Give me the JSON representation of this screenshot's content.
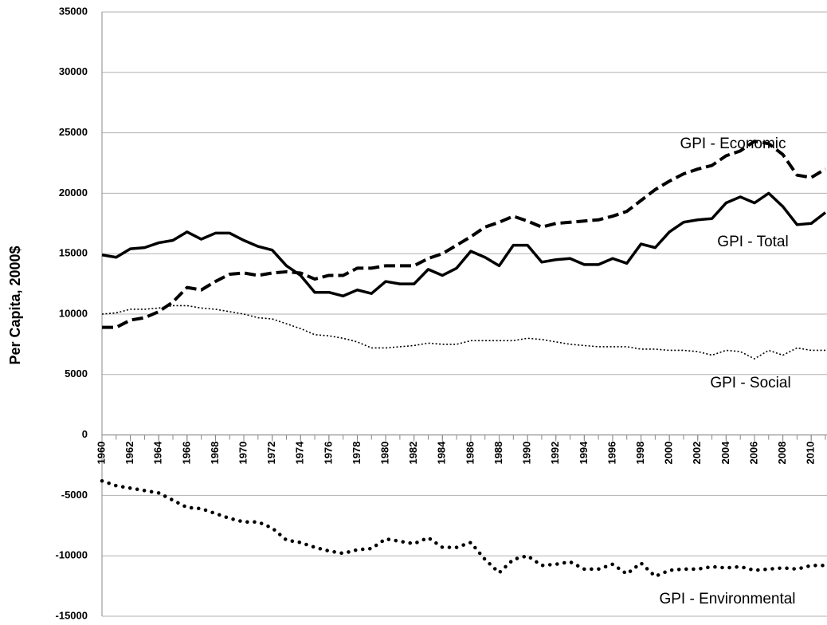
{
  "chart_data": {
    "type": "line",
    "y_label": "Per Capita, 2000$",
    "x": [
      1960,
      1961,
      1962,
      1963,
      1964,
      1965,
      1966,
      1967,
      1968,
      1969,
      1970,
      1971,
      1972,
      1973,
      1974,
      1975,
      1976,
      1977,
      1978,
      1979,
      1980,
      1981,
      1982,
      1983,
      1984,
      1985,
      1986,
      1987,
      1988,
      1989,
      1990,
      1991,
      1992,
      1993,
      1994,
      1995,
      1996,
      1997,
      1998,
      1999,
      2000,
      2001,
      2002,
      2003,
      2004,
      2005,
      2006,
      2007,
      2008,
      2009,
      2010,
      2011
    ],
    "xlim": [
      1960,
      2011
    ],
    "xticks": [
      1960,
      1962,
      1964,
      1966,
      1968,
      1970,
      1972,
      1974,
      1976,
      1978,
      1980,
      1982,
      1984,
      1986,
      1988,
      1990,
      1992,
      1994,
      1996,
      1998,
      2000,
      2002,
      2004,
      2006,
      2008,
      2010
    ],
    "ylim": [
      -15000,
      35000
    ],
    "yticks": [
      -15000,
      -10000,
      -5000,
      0,
      5000,
      10000,
      15000,
      20000,
      25000,
      30000,
      35000
    ],
    "grid": true,
    "series": [
      {
        "name": "GPI - Economic",
        "color": "#000000",
        "dash": "dashed",
        "values": [
          8900,
          8900,
          9500,
          9700,
          10200,
          11000,
          12200,
          12000,
          12700,
          13300,
          13400,
          13200,
          13400,
          13500,
          13400,
          12900,
          13200,
          13200,
          13800,
          13800,
          14000,
          14000,
          14000,
          14600,
          15000,
          15700,
          16400,
          17200,
          17600,
          18100,
          17700,
          17200,
          17500,
          17600,
          17700,
          17800,
          18100,
          18500,
          19400,
          20300,
          21000,
          21600,
          22000,
          22300,
          23100,
          23500,
          24300,
          24100,
          23200,
          21500,
          21300,
          22000
        ]
      },
      {
        "name": "GPI - Total",
        "color": "#000000",
        "dash": "solid",
        "values": [
          14900,
          14700,
          15400,
          15500,
          15900,
          16100,
          16800,
          16200,
          16700,
          16700,
          16100,
          15600,
          15300,
          14000,
          13200,
          11800,
          11800,
          11500,
          12000,
          11700,
          12700,
          12500,
          12500,
          13700,
          13200,
          13800,
          15200,
          14700,
          14000,
          15700,
          15700,
          14300,
          14500,
          14600,
          14100,
          14100,
          14600,
          14200,
          15800,
          15500,
          16800,
          17600,
          17800,
          17900,
          19200,
          19700,
          19200,
          20000,
          18900,
          17400,
          17500,
          18400
        ]
      },
      {
        "name": "GPI - Social",
        "color": "#000000",
        "dash": "dotted",
        "values": [
          10000,
          10100,
          10400,
          10400,
          10500,
          10700,
          10700,
          10500,
          10400,
          10200,
          10000,
          9700,
          9600,
          9200,
          8800,
          8300,
          8200,
          8000,
          7700,
          7200,
          7200,
          7300,
          7400,
          7600,
          7500,
          7500,
          7800,
          7800,
          7800,
          7800,
          8000,
          7900,
          7700,
          7500,
          7400,
          7300,
          7300,
          7300,
          7100,
          7100,
          7000,
          7000,
          6900,
          6600,
          7000,
          6900,
          6300,
          7000,
          6600,
          7200,
          7000,
          7000
        ]
      },
      {
        "name": "GPI - Environmental",
        "color": "#000000",
        "dash": "heavy-dotted",
        "values": [
          -3800,
          -4200,
          -4400,
          -4600,
          -4800,
          -5400,
          -6000,
          -6100,
          -6500,
          -6900,
          -7200,
          -7200,
          -7700,
          -8700,
          -8900,
          -9300,
          -9600,
          -9800,
          -9500,
          -9400,
          -8600,
          -8800,
          -9000,
          -8500,
          -9300,
          -9300,
          -8900,
          -10300,
          -11400,
          -10300,
          -10000,
          -10800,
          -10700,
          -10500,
          -11100,
          -11100,
          -10700,
          -11500,
          -10600,
          -11700,
          -11200,
          -11100,
          -11100,
          -10900,
          -11000,
          -10900,
          -11200,
          -11100,
          -11000,
          -11100,
          -10800,
          -10800
        ]
      }
    ]
  }
}
